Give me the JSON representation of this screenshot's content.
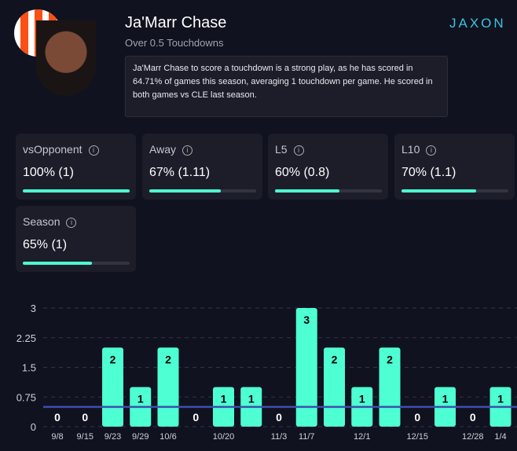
{
  "header": {
    "player_name": "Ja'Marr Chase",
    "prop": "Over 0.5 Touchdowns",
    "description": "Ja'Marr Chase to score a touchdown is a strong play, as he has scored in 64.71% of games this season, averaging 1 touchdown per game. He scored in both games vs CLE last season.",
    "brand": "JAXON",
    "team_logo": "bengals-logo"
  },
  "cards": [
    {
      "label": "vsOpponent",
      "value": "100% (1)",
      "pct": 100
    },
    {
      "label": "Away",
      "value": "67% (1.11)",
      "pct": 67
    },
    {
      "label": "L5",
      "value": "60% (0.8)",
      "pct": 60
    },
    {
      "label": "L10",
      "value": "70% (1.1)",
      "pct": 70
    },
    {
      "label": "Season",
      "value": "65% (1)",
      "pct": 65
    }
  ],
  "colors": {
    "bar": "#4dffd2",
    "line": "#3b4fb0",
    "background": "#11121f"
  },
  "chart_data": {
    "type": "bar",
    "categories": [
      "9/8",
      "9/15",
      "9/23",
      "9/29",
      "10/6",
      "",
      "10/20",
      "",
      "11/3",
      "11/7",
      "",
      "12/1",
      "",
      "12/15",
      "",
      "12/28",
      "1/4"
    ],
    "values": [
      0,
      0,
      2,
      1,
      2,
      0,
      1,
      1,
      0,
      3,
      2,
      1,
      2,
      0,
      1,
      0,
      1
    ],
    "ylim": [
      0,
      3
    ],
    "yticks": [
      "0",
      "0.75",
      "1.5",
      "2.25",
      "3"
    ],
    "threshold": 0.5,
    "grid": "dashed horizontal"
  }
}
